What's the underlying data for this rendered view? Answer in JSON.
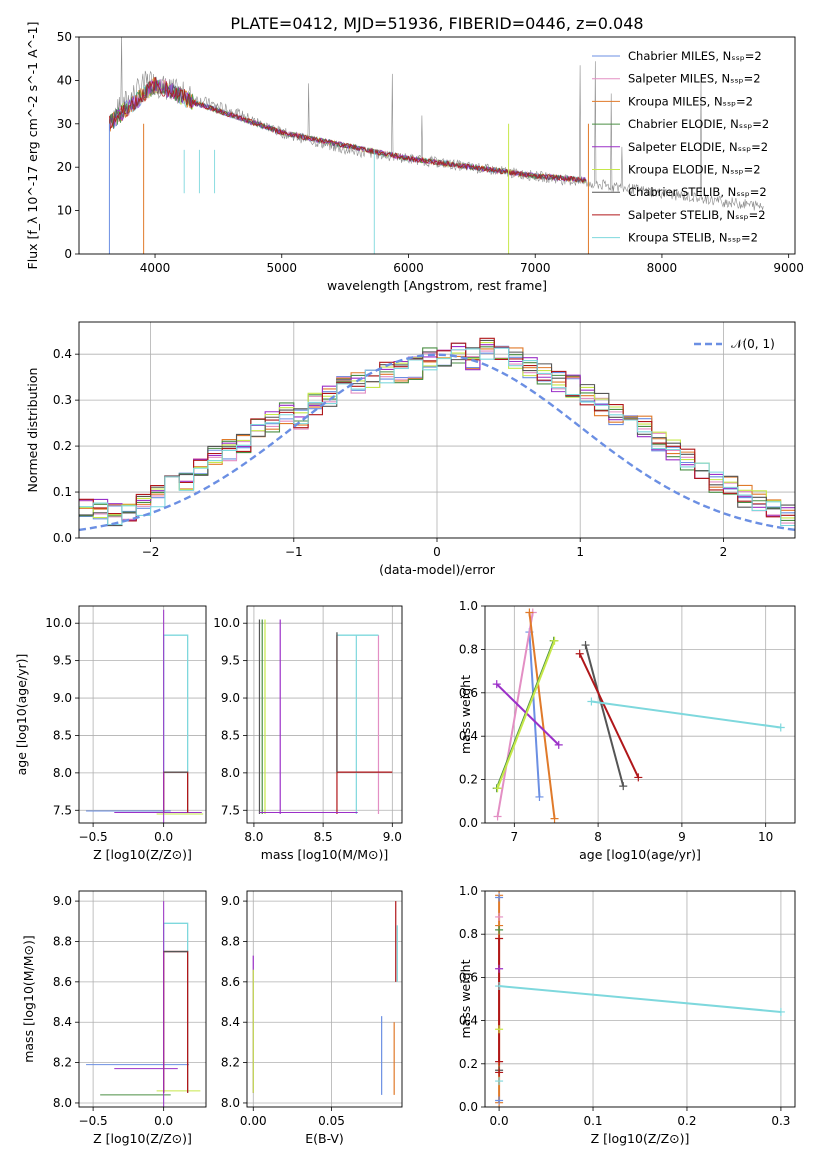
{
  "figure_title": "PLATE=0412, MJD=51936, FIBERID=0446, z=0.048",
  "colors": [
    "#6b8fe3",
    "#e38fc4",
    "#e07a2a",
    "#4b8f45",
    "#9b30c8",
    "#c6e84a",
    "#555555",
    "#b0171a",
    "#7ed8dd"
  ],
  "chart_data": [
    {
      "type": "line",
      "title": "PLATE=0412, MJD=51936, FIBERID=0446, z=0.048",
      "xlabel": "wavelength [Angstrom, rest frame]",
      "ylabel": "Flux [f_λ 10^-17 erg cm^-2 s^-1 A^-1]",
      "xlim": [
        3400,
        9050
      ],
      "ylim": [
        0,
        50
      ],
      "xticks": [
        "4000",
        "5000",
        "6000",
        "7000",
        "8000",
        "9000"
      ],
      "yticks": [
        "0",
        "10",
        "20",
        "30",
        "40",
        "50"
      ],
      "legend_position": "top-right",
      "legend": [
        "Chabrier MILES, N_SSP=2",
        "Salpeter MILES, N_SSP=2",
        "Kroupa MILES, N_SSP=2",
        "Chabrier ELODIE, N_SSP=2",
        "Salpeter ELODIE, N_SSP=2",
        "Kroupa ELODIE, N_SSP=2",
        "Chabrier STELIB, N_SSP=2",
        "Salpeter STELIB, N_SSP=2",
        "Kroupa STELIB, N_SSP=2"
      ],
      "data_spectrum": {
        "name": "data",
        "x": [
          3640,
          3800,
          3950,
          4100,
          4300,
          4600,
          5000,
          5500,
          6000,
          6500,
          7000,
          7500,
          8000,
          8500,
          8800
        ],
        "y": [
          31,
          36,
          40,
          38,
          36,
          33,
          28,
          24,
          22,
          20,
          18,
          16,
          14,
          12,
          11
        ]
      },
      "model_continuum": {
        "x": [
          3640,
          3800,
          4000,
          4100,
          4300,
          4600,
          5000,
          5500,
          6000,
          6500,
          7000,
          7400
        ],
        "y": [
          30,
          34,
          39,
          38,
          35,
          32,
          28,
          25,
          22,
          20,
          18,
          17
        ]
      }
    },
    {
      "type": "line",
      "xlabel": "(data-model)/error",
      "ylabel": "Normed distribution",
      "xlim": [
        -2.5,
        2.5
      ],
      "ylim": [
        0,
        0.47
      ],
      "xticks": [
        "−2",
        "−1",
        "0",
        "1",
        "2"
      ],
      "yticks": [
        "0.0",
        "0.1",
        "0.2",
        "0.3",
        "0.4"
      ],
      "legend_position": "top-right",
      "legend": [
        "𝒩(0, 1)"
      ],
      "bin_width": 0.1,
      "histogram_profile": [
        0.06,
        0.06,
        0.05,
        0.06,
        0.07,
        0.09,
        0.12,
        0.12,
        0.16,
        0.18,
        0.19,
        0.21,
        0.24,
        0.25,
        0.27,
        0.26,
        0.29,
        0.31,
        0.33,
        0.34,
        0.35,
        0.36,
        0.36,
        0.37,
        0.39,
        0.39,
        0.4,
        0.39,
        0.41,
        0.4,
        0.39,
        0.37,
        0.36,
        0.34,
        0.33,
        0.31,
        0.29,
        0.27,
        0.26,
        0.24,
        0.21,
        0.19,
        0.17,
        0.15,
        0.12,
        0.11,
        0.09,
        0.08,
        0.07,
        0.05
      ]
    },
    {
      "type": "line",
      "xlabel": "Z [log10(Z/Z⊙)]",
      "ylabel": "age [log10(age/yr)]",
      "xlim": [
        -0.6,
        0.3
      ],
      "ylim": [
        7.33,
        10.23
      ],
      "xticks": [
        "−0.5",
        "0.0"
      ],
      "yticks": [
        "7.5",
        "8.0",
        "8.5",
        "9.0",
        "9.5",
        "10.0"
      ],
      "step_tops": [
        {
          "base": 7.47,
          "top": 9.84,
          "x_low": 0.0,
          "x_high": 0.17
        },
        {
          "base": 7.47,
          "top": 8.01,
          "x_low": 0.0,
          "x_high": 0.17
        }
      ],
      "horizontal_ticks": [
        {
          "y": 7.49,
          "x0": -0.55,
          "x1": 0.05
        },
        {
          "y": 7.47,
          "x0": -0.35,
          "x1": 0.27
        },
        {
          "y": 7.45,
          "x0": -0.05,
          "x1": 0.28
        }
      ]
    },
    {
      "type": "line",
      "xlabel": "mass [log10(M/M⊙)]",
      "ylabel": "",
      "xlim": [
        7.95,
        9.07
      ],
      "ylim": [
        7.33,
        10.23
      ],
      "xticks": [
        "8.0",
        "8.5",
        "9.0"
      ],
      "yticks": [
        "7.5",
        "8.0",
        "8.5",
        "9.0",
        "9.5",
        "10.0"
      ],
      "verticals": [
        8.04,
        8.06,
        8.08,
        8.19,
        8.6,
        8.74,
        8.9
      ],
      "steps": [
        {
          "x0": 8.6,
          "x1": 8.9,
          "top": 9.84
        },
        {
          "x0": 8.6,
          "x1": 9.0,
          "top": 8.01
        }
      ]
    },
    {
      "type": "scatter",
      "xlabel": "age [log10(age/yr)]",
      "ylabel": "mass weight",
      "xlim": [
        6.65,
        10.35
      ],
      "ylim": [
        0,
        1
      ],
      "xticks": [
        "7",
        "8",
        "9",
        "10"
      ],
      "yticks": [
        "0.0",
        "0.2",
        "0.4",
        "0.6",
        "0.8",
        "1.0"
      ],
      "segments": [
        {
          "series": 0,
          "from": [
            7.18,
            0.88
          ],
          "to": [
            7.3,
            0.12
          ]
        },
        {
          "series": 1,
          "from": [
            7.22,
            0.97
          ],
          "to": [
            6.8,
            0.03
          ]
        },
        {
          "series": 2,
          "from": [
            7.18,
            0.97
          ],
          "to": [
            7.48,
            0.02
          ]
        },
        {
          "series": 3,
          "from": [
            7.47,
            0.84
          ],
          "to": [
            6.79,
            0.16
          ]
        },
        {
          "series": 4,
          "from": [
            6.79,
            0.64
          ],
          "to": [
            7.53,
            0.36
          ]
        },
        {
          "series": 5,
          "from": [
            7.48,
            0.84
          ],
          "to": [
            6.8,
            0.16
          ]
        },
        {
          "series": 6,
          "from": [
            7.85,
            0.82
          ],
          "to": [
            8.3,
            0.17
          ]
        },
        {
          "series": 7,
          "from": [
            7.78,
            0.78
          ],
          "to": [
            8.48,
            0.21
          ]
        },
        {
          "series": 8,
          "from": [
            7.92,
            0.56
          ],
          "to": [
            10.18,
            0.44
          ]
        }
      ]
    },
    {
      "type": "line",
      "xlabel": "Z [log10(Z/Z⊙)]",
      "ylabel": "mass [log10(M/M⊙)]",
      "xlim": [
        -0.6,
        0.3
      ],
      "ylim": [
        7.98,
        9.05
      ],
      "xticks": [
        "−0.5",
        "0.0"
      ],
      "yticks": [
        "8.0",
        "8.2",
        "8.4",
        "8.6",
        "8.8",
        "9.0"
      ],
      "step_tops": [
        {
          "base": 8.05,
          "top": 8.89,
          "x_low": 0.0,
          "x_high": 0.17
        },
        {
          "base": 8.05,
          "top": 8.75,
          "x_low": 0.0,
          "x_high": 0.17
        }
      ],
      "horizontal_ticks": [
        {
          "y": 8.19,
          "x0": -0.55,
          "x1": 0.18
        },
        {
          "y": 8.17,
          "x0": -0.35,
          "x1": 0.1
        },
        {
          "y": 8.06,
          "x0": -0.05,
          "x1": 0.26
        },
        {
          "y": 8.04,
          "x0": -0.45,
          "x1": 0.05
        }
      ]
    },
    {
      "type": "line",
      "xlabel": "E(B-V)",
      "ylabel": "",
      "xlim": [
        -0.004,
        0.095
      ],
      "ylim": [
        7.98,
        9.05
      ],
      "xticks": [
        "0.00",
        "0.05"
      ],
      "yticks": [
        "8.0",
        "8.2",
        "8.4",
        "8.6",
        "8.8",
        "9.0"
      ],
      "verticals": [
        {
          "x": 0.0,
          "y0": 8.05,
          "y1": 8.73,
          "series": 4
        },
        {
          "x": 0.0,
          "y0": 8.05,
          "y1": 8.66,
          "series": 5
        },
        {
          "x": 0.082,
          "y0": 8.04,
          "y1": 8.43,
          "series": 0
        },
        {
          "x": 0.09,
          "y0": 8.04,
          "y1": 8.4,
          "series": 2
        },
        {
          "x": 0.091,
          "y0": 8.6,
          "y1": 9.0,
          "series": 7
        },
        {
          "x": 0.092,
          "y0": 8.6,
          "y1": 8.88,
          "series": 8
        }
      ]
    },
    {
      "type": "scatter",
      "xlabel": "Z [log10(Z/Z⊙)]",
      "ylabel": "mass weight",
      "xlim": [
        -0.015,
        0.315
      ],
      "ylim": [
        0,
        1
      ],
      "xticks": [
        "0.0",
        "0.1",
        "0.2",
        "0.3"
      ],
      "yticks": [
        "0.0",
        "0.2",
        "0.4",
        "0.6",
        "0.8",
        "1.0"
      ],
      "segments": [
        {
          "series": 2,
          "from": [
            0.0,
            0.98
          ],
          "to": [
            0.0,
            0.02
          ]
        },
        {
          "series": 7,
          "from": [
            0.0,
            0.78
          ],
          "to": [
            0.0,
            0.21
          ]
        },
        {
          "series": 8,
          "from": [
            0.0,
            0.56
          ],
          "to": [
            0.3,
            0.44
          ]
        }
      ],
      "extra_points_at_zero": [
        0.97,
        0.88,
        0.84,
        0.82,
        0.64,
        0.36,
        0.17,
        0.16,
        0.12,
        0.03
      ]
    }
  ]
}
